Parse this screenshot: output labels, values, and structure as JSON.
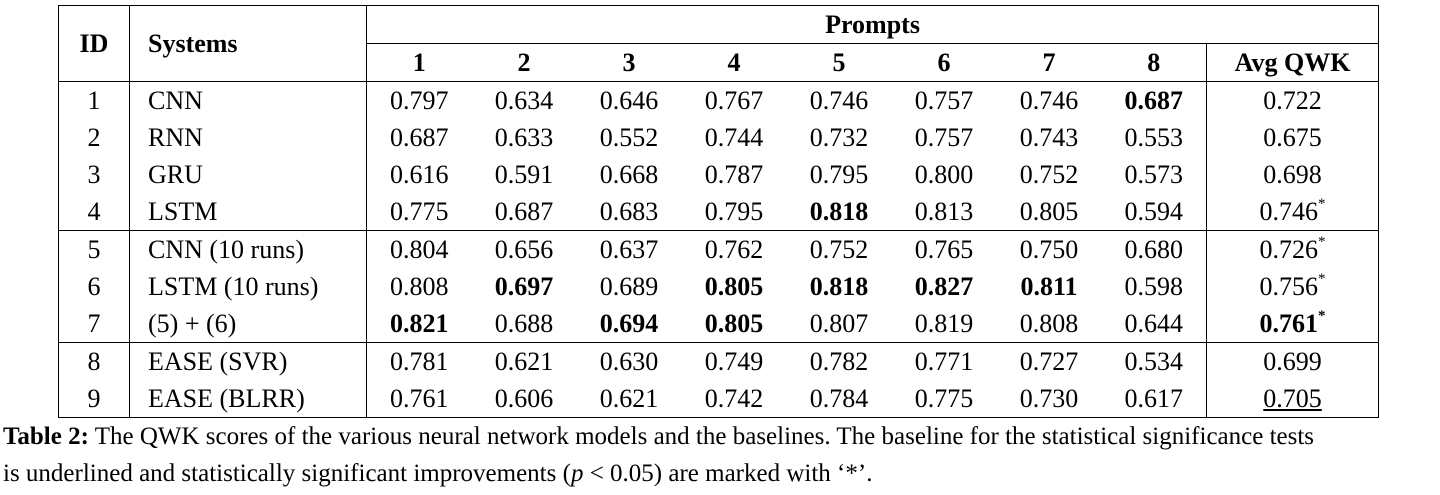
{
  "table": {
    "header": {
      "id": "ID",
      "systems": "Systems",
      "prompts": "Prompts",
      "columns": [
        "1",
        "2",
        "3",
        "4",
        "5",
        "6",
        "7",
        "8",
        "Avg QWK"
      ]
    },
    "groups": [
      [
        {
          "id": "1",
          "system": "CNN",
          "scores": [
            "0.797",
            "0.634",
            "0.646",
            "0.767",
            "0.746",
            "0.757",
            "0.746",
            {
              "text": "0.687",
              "bold": true
            }
          ],
          "avg": {
            "text": "0.722"
          }
        },
        {
          "id": "2",
          "system": "RNN",
          "scores": [
            "0.687",
            "0.633",
            "0.552",
            "0.744",
            "0.732",
            "0.757",
            "0.743",
            "0.553"
          ],
          "avg": {
            "text": "0.675"
          }
        },
        {
          "id": "3",
          "system": "GRU",
          "scores": [
            "0.616",
            "0.591",
            "0.668",
            "0.787",
            "0.795",
            "0.800",
            "0.752",
            "0.573"
          ],
          "avg": {
            "text": "0.698"
          }
        },
        {
          "id": "4",
          "system": "LSTM",
          "scores": [
            "0.775",
            "0.687",
            "0.683",
            "0.795",
            {
              "text": "0.818",
              "bold": true
            },
            "0.813",
            "0.805",
            "0.594"
          ],
          "avg": {
            "text": "0.746",
            "sup": "*"
          }
        }
      ],
      [
        {
          "id": "5",
          "system": "CNN (10 runs)",
          "scores": [
            "0.804",
            "0.656",
            "0.637",
            "0.762",
            "0.752",
            "0.765",
            "0.750",
            "0.680"
          ],
          "avg": {
            "text": "0.726",
            "sup": "*"
          }
        },
        {
          "id": "6",
          "system": "LSTM (10 runs)",
          "scores": [
            "0.808",
            {
              "text": "0.697",
              "bold": true
            },
            "0.689",
            {
              "text": "0.805",
              "bold": true
            },
            {
              "text": "0.818",
              "bold": true
            },
            {
              "text": "0.827",
              "bold": true
            },
            {
              "text": "0.811",
              "bold": true
            },
            "0.598"
          ],
          "avg": {
            "text": "0.756",
            "sup": "*"
          }
        },
        {
          "id": "7",
          "system": "(5) + (6)",
          "scores": [
            {
              "text": "0.821",
              "bold": true
            },
            "0.688",
            {
              "text": "0.694",
              "bold": true
            },
            {
              "text": "0.805",
              "bold": true
            },
            "0.807",
            "0.819",
            "0.808",
            "0.644"
          ],
          "avg": {
            "text": "0.761",
            "sup": "*",
            "bold": true
          }
        }
      ],
      [
        {
          "id": "8",
          "system": "EASE (SVR)",
          "scores": [
            "0.781",
            "0.621",
            "0.630",
            "0.749",
            "0.782",
            "0.771",
            "0.727",
            "0.534"
          ],
          "avg": {
            "text": "0.699"
          }
        },
        {
          "id": "9",
          "system": "EASE (BLRR)",
          "scores": [
            "0.761",
            "0.606",
            "0.621",
            "0.742",
            "0.784",
            "0.775",
            "0.730",
            "0.617"
          ],
          "avg": {
            "text": "0.705",
            "underline": true
          }
        }
      ]
    ]
  },
  "caption": {
    "label": "Table 2:",
    "line1": "The QWK scores of the various neural network models and the baselines. The baseline for the statistical significance tests",
    "line2_start": "is underlined and statistically significant improvements (",
    "variable": "p",
    "line2_end": " < 0.05) are marked with ‘*’."
  }
}
